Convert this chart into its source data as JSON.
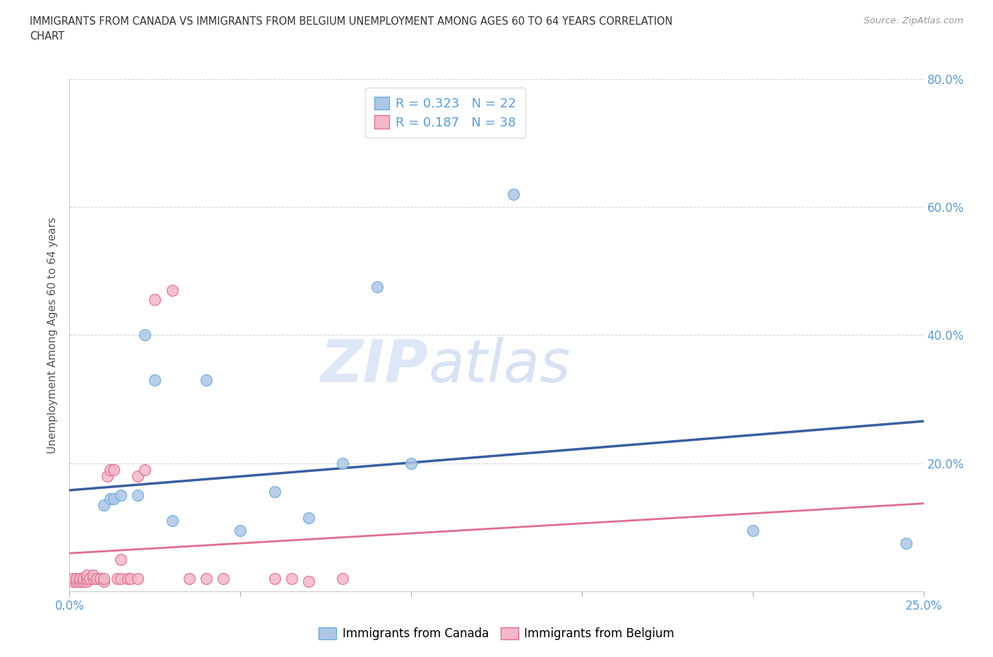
{
  "title_line1": "IMMIGRANTS FROM CANADA VS IMMIGRANTS FROM BELGIUM UNEMPLOYMENT AMONG AGES 60 TO 64 YEARS CORRELATION",
  "title_line2": "CHART",
  "source_text": "Source: ZipAtlas.com",
  "ylabel": "Unemployment Among Ages 60 to 64 years",
  "xlim": [
    0.0,
    0.25
  ],
  "ylim": [
    0.0,
    0.8
  ],
  "canada_color": "#aec6e8",
  "canada_edge_color": "#6baed6",
  "belgium_color": "#f4b8c8",
  "belgium_edge_color": "#e07090",
  "trend_canada_color": "#3a5fa0",
  "trend_belgium_solid_color": "#e07090",
  "trend_belgium_dash_color": "#f4b8c8",
  "axis_color": "#5b9bd5",
  "grid_color": "#cccccc",
  "legend_canada_label": "Immigrants from Canada",
  "legend_belgium_label": "Immigrants from Belgium",
  "r_canada": "0.323",
  "n_canada": "22",
  "r_belgium": "0.187",
  "n_belgium": "38",
  "watermark_zip": "ZIP",
  "watermark_atlas": "atlas",
  "marker_size": 130,
  "canada_x": [
    0.003,
    0.006,
    0.008,
    0.009,
    0.01,
    0.012,
    0.013,
    0.015,
    0.02,
    0.022,
    0.025,
    0.03,
    0.04,
    0.05,
    0.06,
    0.07,
    0.08,
    0.09,
    0.1,
    0.13,
    0.2,
    0.245
  ],
  "canada_y": [
    0.02,
    0.02,
    0.02,
    0.02,
    0.135,
    0.145,
    0.145,
    0.15,
    0.15,
    0.4,
    0.33,
    0.11,
    0.33,
    0.095,
    0.155,
    0.115,
    0.2,
    0.475,
    0.2,
    0.62,
    0.095,
    0.075
  ],
  "belgium_x": [
    0.001,
    0.001,
    0.002,
    0.002,
    0.003,
    0.003,
    0.004,
    0.004,
    0.005,
    0.005,
    0.005,
    0.006,
    0.007,
    0.007,
    0.008,
    0.009,
    0.01,
    0.01,
    0.011,
    0.012,
    0.013,
    0.014,
    0.015,
    0.015,
    0.017,
    0.018,
    0.02,
    0.02,
    0.022,
    0.025,
    0.03,
    0.035,
    0.04,
    0.045,
    0.06,
    0.065,
    0.07,
    0.08
  ],
  "belgium_y": [
    0.015,
    0.02,
    0.015,
    0.02,
    0.015,
    0.02,
    0.015,
    0.02,
    0.015,
    0.02,
    0.025,
    0.02,
    0.02,
    0.025,
    0.02,
    0.02,
    0.015,
    0.02,
    0.18,
    0.19,
    0.19,
    0.02,
    0.02,
    0.05,
    0.02,
    0.02,
    0.02,
    0.18,
    0.19,
    0.455,
    0.47,
    0.02,
    0.02,
    0.02,
    0.02,
    0.02,
    0.015,
    0.02
  ]
}
